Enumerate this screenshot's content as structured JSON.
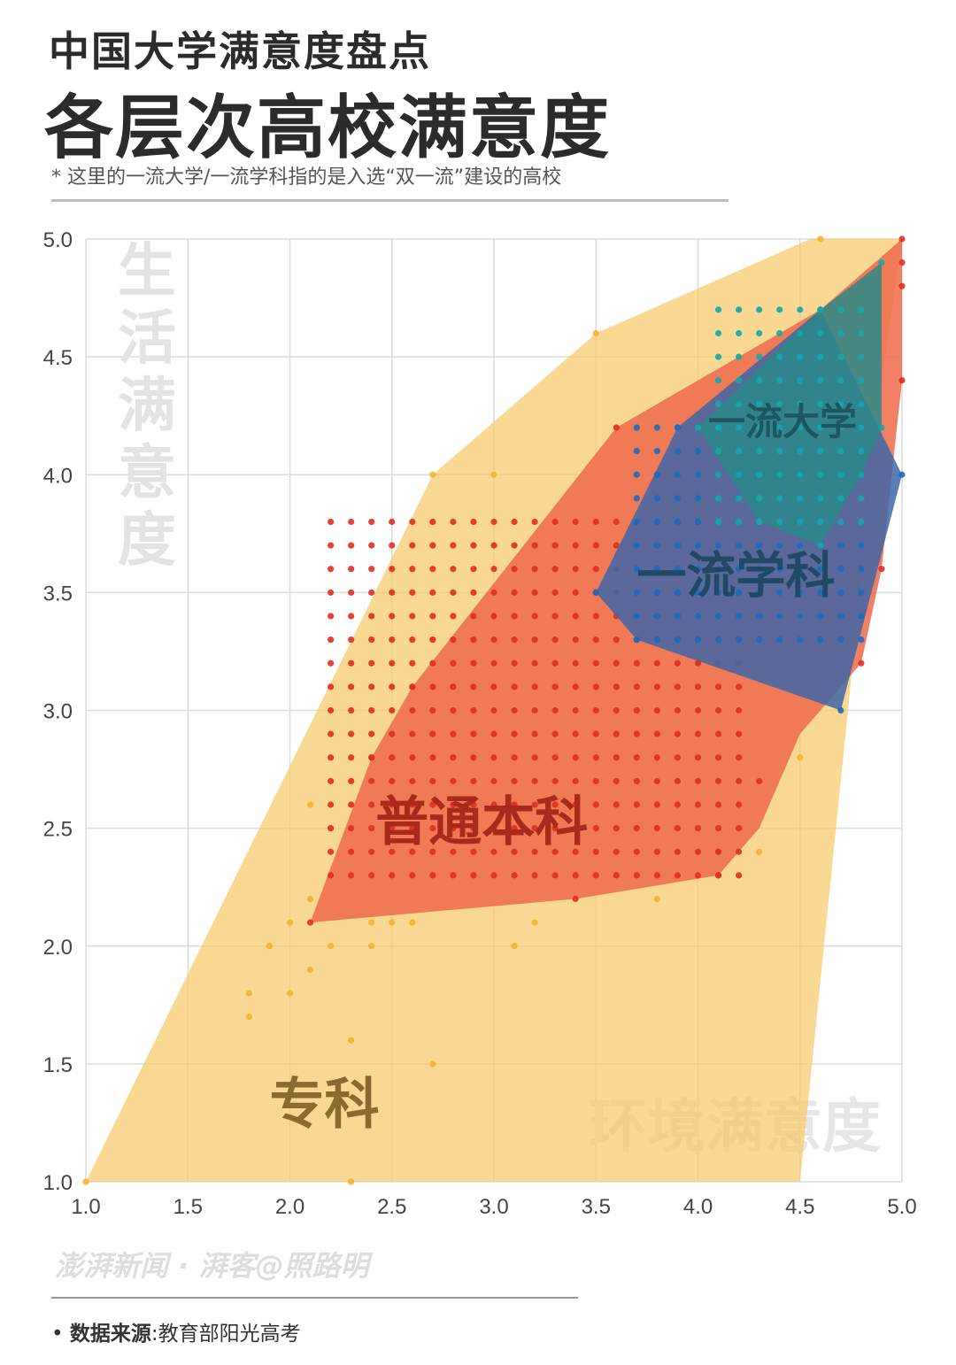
{
  "header": {
    "subtitle": "中国大学满意度盘点",
    "title": "各层次高校满意度",
    "note": "* 这里的一流大学/一流学科指的是入选“双一流”建设的高校"
  },
  "footer": {
    "watermark": "澎湃新闻 · 湃客@照路明",
    "source_bullet": "•",
    "source_label": "数据来源",
    "source_sep": ":",
    "source_value": "教育部阳光高考"
  },
  "chart_data": {
    "type": "scatter",
    "xlabel": "环境满意度",
    "ylabel": "生活满意度",
    "xlim": [
      1.0,
      5.0
    ],
    "ylim": [
      1.0,
      5.0
    ],
    "xticks": [
      "1.0",
      "1.5",
      "2.0",
      "2.5",
      "3.0",
      "3.5",
      "4.0",
      "4.5",
      "5.0"
    ],
    "yticks": [
      "1.0",
      "1.5",
      "2.0",
      "2.5",
      "3.0",
      "3.5",
      "4.0",
      "4.5",
      "5.0"
    ],
    "grid": true,
    "series": [
      {
        "name": "专科",
        "color": "#f5c96a",
        "point_color": "#f5b32e",
        "label_color": "#8a6a2e",
        "hull": [
          [
            1.0,
            1.0
          ],
          [
            2.7,
            4.0
          ],
          [
            3.5,
            4.6
          ],
          [
            4.55,
            5.0
          ],
          [
            5.0,
            5.0
          ],
          [
            4.9,
            4.4
          ],
          [
            4.5,
            1.0
          ]
        ],
        "points": [
          [
            1.0,
            1.0
          ],
          [
            1.8,
            1.8
          ],
          [
            1.8,
            1.7
          ],
          [
            1.9,
            2.0
          ],
          [
            2.0,
            2.1
          ],
          [
            2.0,
            1.8
          ],
          [
            2.1,
            2.6
          ],
          [
            2.1,
            2.2
          ],
          [
            2.1,
            1.9
          ],
          [
            2.2,
            2.5
          ],
          [
            2.2,
            2.0
          ],
          [
            2.3,
            2.6
          ],
          [
            2.3,
            1.6
          ],
          [
            2.3,
            1.0
          ],
          [
            2.4,
            2.1
          ],
          [
            2.4,
            2.0
          ],
          [
            2.5,
            2.1
          ],
          [
            2.6,
            2.1
          ],
          [
            2.7,
            4.0
          ],
          [
            2.7,
            3.3
          ],
          [
            2.7,
            1.5
          ],
          [
            2.8,
            3.4
          ],
          [
            3.0,
            4.0
          ],
          [
            3.1,
            2.0
          ],
          [
            3.2,
            2.1
          ],
          [
            3.5,
            4.6
          ],
          [
            3.8,
            2.2
          ],
          [
            4.2,
            4.7
          ],
          [
            4.3,
            2.4
          ],
          [
            4.5,
            2.8
          ],
          [
            4.6,
            5.0
          ]
        ],
        "label_pos": [
          1.9,
          1.25
        ]
      },
      {
        "name": "普通本科",
        "color": "#ee6a4a",
        "point_color": "#e02d20",
        "label_color": "#a82a1c",
        "hull": [
          [
            2.1,
            2.1
          ],
          [
            2.4,
            2.8
          ],
          [
            2.6,
            3.1
          ],
          [
            3.6,
            4.2
          ],
          [
            4.6,
            4.7
          ],
          [
            5.0,
            5.0
          ],
          [
            5.0,
            4.4
          ],
          [
            4.9,
            3.6
          ],
          [
            4.8,
            3.2
          ],
          [
            4.5,
            2.9
          ],
          [
            4.3,
            2.5
          ],
          [
            4.1,
            2.3
          ],
          [
            3.4,
            2.2
          ]
        ],
        "points": [
          [
            2.1,
            2.1
          ],
          [
            2.4,
            2.8
          ],
          [
            2.6,
            3.1
          ],
          [
            3.6,
            4.2
          ],
          [
            4.6,
            4.7
          ],
          [
            5.0,
            5.0
          ],
          [
            5.0,
            4.9
          ],
          [
            5.0,
            4.8
          ],
          [
            5.0,
            4.4
          ],
          [
            4.9,
            3.6
          ],
          [
            4.8,
            3.2
          ],
          [
            4.3,
            2.7
          ],
          [
            4.1,
            2.4
          ],
          [
            4.1,
            2.3
          ],
          [
            3.4,
            2.2
          ]
        ],
        "grid_points": {
          "x": [
            2.2,
            4.2,
            0.1
          ],
          "y": [
            2.3,
            3.8,
            0.1
          ]
        },
        "label_pos": [
          2.42,
          2.45
        ]
      },
      {
        "name": "一流学科",
        "color": "#3f66a6",
        "point_color": "#1a6cc0",
        "label_color": "#1e4a66",
        "hull": [
          [
            3.5,
            3.5
          ],
          [
            3.9,
            4.2
          ],
          [
            4.6,
            4.7
          ],
          [
            5.0,
            4.0
          ],
          [
            4.7,
            3.0
          ],
          [
            3.7,
            3.3
          ]
        ],
        "points": [
          [
            3.5,
            3.5
          ],
          [
            3.9,
            4.2
          ],
          [
            4.6,
            4.7
          ],
          [
            5.0,
            4.0
          ],
          [
            4.7,
            3.0
          ],
          [
            3.7,
            3.3
          ]
        ],
        "grid_points": {
          "x": [
            3.7,
            4.8,
            0.1
          ],
          "y": [
            3.3,
            4.2,
            0.1
          ]
        },
        "label_pos": [
          3.7,
          3.5
        ]
      },
      {
        "name": "一流大学",
        "color": "#2a8a8a",
        "point_color": "#14a8a8",
        "label_color": "#1f5560",
        "hull": [
          [
            4.0,
            4.2
          ],
          [
            4.6,
            4.7
          ],
          [
            4.9,
            4.9
          ],
          [
            4.9,
            4.2
          ],
          [
            4.8,
            4.0
          ],
          [
            4.6,
            3.7
          ],
          [
            4.3,
            3.8
          ]
        ],
        "points": [
          [
            4.0,
            4.2
          ],
          [
            4.6,
            4.7
          ],
          [
            4.9,
            4.9
          ],
          [
            4.9,
            4.2
          ],
          [
            4.6,
            3.7
          ],
          [
            4.3,
            3.8
          ]
        ],
        "grid_points": {
          "x": [
            4.1,
            4.8,
            0.1
          ],
          "y": [
            3.8,
            4.7,
            0.1
          ]
        },
        "label_pos": [
          4.05,
          4.17
        ]
      }
    ]
  }
}
